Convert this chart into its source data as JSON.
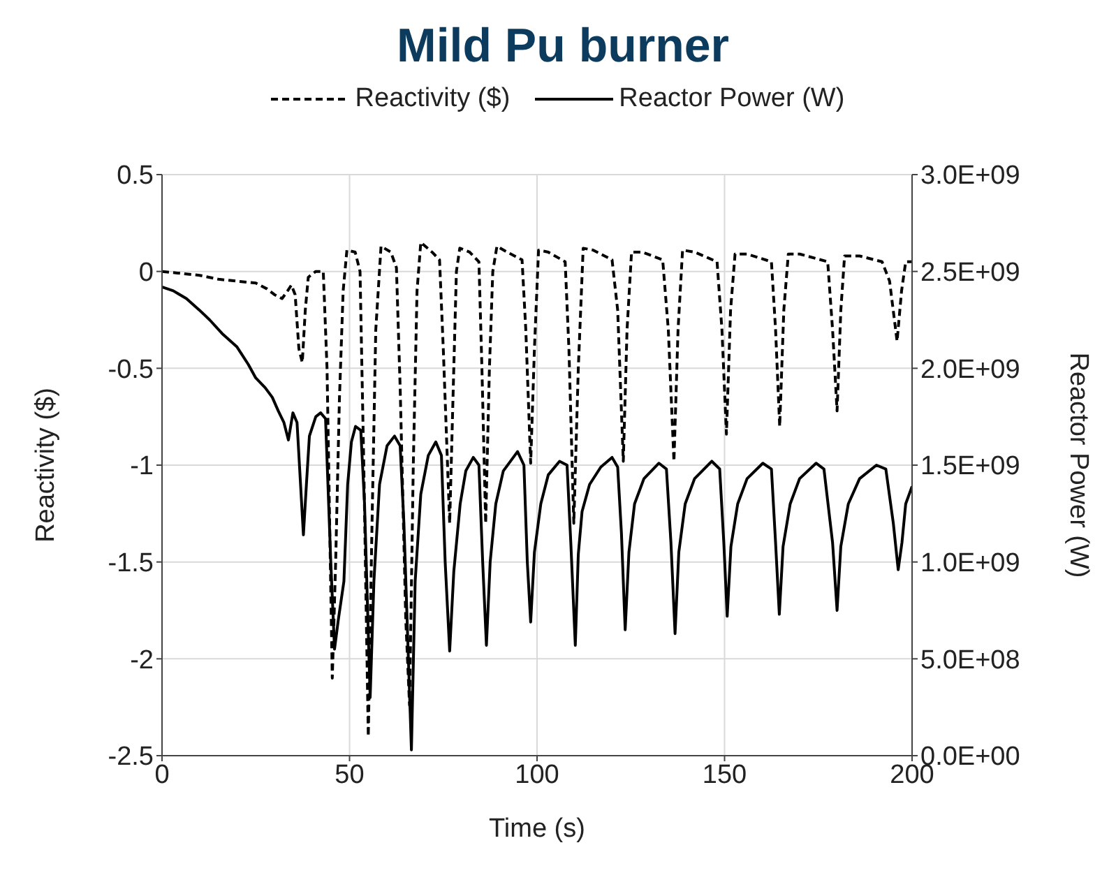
{
  "chart_data": {
    "type": "line",
    "title": "Mild Pu burner",
    "xlabel": "Time (s)",
    "ylabel": "Reactivity ($)",
    "y2label": "Reactor Power (W)",
    "xlim": [
      0,
      200
    ],
    "xticks": [
      0,
      50,
      100,
      150,
      200
    ],
    "ylim": [
      -2.5,
      0.5
    ],
    "yticks": [
      -2.5,
      -2,
      -1.5,
      -1,
      -0.5,
      0,
      0.5
    ],
    "y2lim": [
      0,
      3000000000.0
    ],
    "y2ticks": [
      {
        "value": 0,
        "label": "0.0E+00"
      },
      {
        "value": 500000000.0,
        "label": "5.0E+08"
      },
      {
        "value": 1000000000.0,
        "label": "1.0E+09"
      },
      {
        "value": 1500000000.0,
        "label": "1.5E+09"
      },
      {
        "value": 2000000000.0,
        "label": "2.0E+09"
      },
      {
        "value": 2500000000.0,
        "label": "2.5E+09"
      },
      {
        "value": 3000000000.0,
        "label": "3.0E+09"
      }
    ],
    "grid": true,
    "legend": "top",
    "marker": "none",
    "series": [
      {
        "name": "Reactivity ($)",
        "color": "#000000",
        "line_style": "dashed",
        "x": [
          0,
          5,
          10,
          15,
          20,
          25,
          28,
          30,
          32,
          33.5,
          34.5,
          35.5,
          36.5,
          37.4,
          38.2,
          39,
          41,
          43,
          44,
          45.4,
          46.3,
          47.3,
          48.3,
          49.3,
          51.5,
          52.8,
          53.8,
          55,
          56,
          57,
          58.4,
          61,
          62.5,
          63.5,
          65,
          66,
          67,
          68,
          69,
          72,
          74,
          75,
          76.7,
          77.8,
          78.5,
          79.4,
          82,
          84.5,
          85.3,
          86.3,
          87.3,
          88.2,
          89.3,
          92,
          96,
          97,
          98.3,
          99.3,
          100.4,
          103,
          107.5,
          108.5,
          109.8,
          111,
          112.3,
          115,
          120,
          121.5,
          123,
          124,
          125.2,
          128,
          133.5,
          135,
          136.5,
          137.6,
          138.8,
          142,
          148,
          149.3,
          150.5,
          151.6,
          152.8,
          156,
          162.5,
          163.6,
          164.7,
          165.8,
          167,
          170,
          177.5,
          178.8,
          180,
          181,
          182,
          186,
          192,
          194,
          196,
          197.2,
          198.3,
          200
        ],
        "values": [
          0,
          -0.01,
          -0.02,
          -0.04,
          -0.05,
          -0.06,
          -0.09,
          -0.12,
          -0.14,
          -0.1,
          -0.07,
          -0.12,
          -0.4,
          -0.47,
          -0.2,
          -0.03,
          0,
          0,
          -0.5,
          -2.1,
          -1.5,
          -0.66,
          -0.1,
          0.11,
          0.1,
          0,
          -1,
          -2.4,
          -1.3,
          -0.3,
          0.13,
          0.1,
          0.02,
          -0.6,
          -1.8,
          -2.24,
          -1,
          -0.1,
          0.15,
          0.1,
          0.06,
          -0.4,
          -1.3,
          -0.5,
          0,
          0.12,
          0.1,
          0.05,
          -0.5,
          -1.3,
          -0.5,
          0,
          0.13,
          0.1,
          0.06,
          -0.3,
          -0.99,
          -0.4,
          0.11,
          0.1,
          0.05,
          -0.4,
          -1.3,
          -0.5,
          0.12,
          0.11,
          0.06,
          -0.2,
          -0.98,
          -0.3,
          0.1,
          0.1,
          0.06,
          -0.3,
          -0.98,
          -0.3,
          0.11,
          0.1,
          0.05,
          -0.3,
          -0.84,
          -0.2,
          0.09,
          0.09,
          0.05,
          -0.3,
          -0.8,
          -0.2,
          0.09,
          0.09,
          0.05,
          -0.3,
          -0.72,
          -0.2,
          0.08,
          0.08,
          0.05,
          -0.05,
          -0.36,
          -0.1,
          0.05,
          0.05
        ]
      },
      {
        "name": "Reactor Power (W)",
        "color": "#000000",
        "line_style": "solid",
        "axis": "y2",
        "x": [
          0,
          3,
          6.5,
          10,
          12.7,
          16,
          20,
          23,
          25,
          27.5,
          29.4,
          31,
          32.5,
          33.7,
          34.9,
          36,
          37.7,
          38.5,
          39.3,
          41,
          42.3,
          43.6,
          45,
          46,
          47,
          48.5,
          49.5,
          50.5,
          51.6,
          53,
          54,
          55.5,
          56.5,
          58,
          60,
          62,
          63.5,
          64.5,
          66.5,
          67.5,
          69,
          71,
          73,
          74.5,
          75.5,
          76.7,
          77.8,
          79.5,
          81,
          83,
          84.5,
          85.5,
          86.5,
          87.5,
          89,
          91,
          94.8,
          96.5,
          97.4,
          98.3,
          99.3,
          101,
          103,
          106,
          108,
          109,
          110.2,
          111,
          112,
          114,
          117,
          120,
          121.5,
          122.5,
          123.5,
          124.5,
          126,
          128.5,
          132.5,
          134.5,
          135.7,
          136.8,
          137.8,
          139.5,
          142,
          146.6,
          148.7,
          149.8,
          150.7,
          151.7,
          153.5,
          156,
          160.2,
          162.5,
          163.6,
          164.6,
          165.6,
          167.5,
          170,
          174.4,
          176.5,
          178.8,
          180,
          181,
          183,
          186,
          190.5,
          193,
          195,
          196.3,
          197.3,
          198.3,
          200
        ],
        "values": [
          2420000000.0,
          2400000000.0,
          2360000000.0,
          2300000000.0,
          2250000000.0,
          2180000000.0,
          2110000000.0,
          2020000000.0,
          1950000000.0,
          1900000000.0,
          1850000000.0,
          1780000000.0,
          1720000000.0,
          1630000000.0,
          1770000000.0,
          1720000000.0,
          1140000000.0,
          1400000000.0,
          1650000000.0,
          1750000000.0,
          1770000000.0,
          1740000000.0,
          1000000000.0,
          550000000.0,
          700000000.0,
          900000000.0,
          1400000000.0,
          1620000000.0,
          1700000000.0,
          1680000000.0,
          1300000000.0,
          300000000.0,
          900000000.0,
          1400000000.0,
          1600000000.0,
          1650000000.0,
          1600000000.0,
          1200000000.0,
          30000000.0,
          900000000.0,
          1350000000.0,
          1550000000.0,
          1620000000.0,
          1550000000.0,
          1000000000.0,
          540000000.0,
          950000000.0,
          1300000000.0,
          1470000000.0,
          1540000000.0,
          1500000000.0,
          1000000000.0,
          570000000.0,
          1000000000.0,
          1300000000.0,
          1470000000.0,
          1570000000.0,
          1500000000.0,
          1000000000.0,
          690000000.0,
          1050000000.0,
          1300000000.0,
          1450000000.0,
          1520000000.0,
          1500000000.0,
          1100000000.0,
          570000000.0,
          1040000000.0,
          1260000000.0,
          1400000000.0,
          1490000000.0,
          1540000000.0,
          1490000000.0,
          1150000000.0,
          650000000.0,
          1050000000.0,
          1300000000.0,
          1430000000.0,
          1510000000.0,
          1480000000.0,
          1100000000.0,
          630000000.0,
          1050000000.0,
          1300000000.0,
          1430000000.0,
          1520000000.0,
          1480000000.0,
          1100000000.0,
          720000000.0,
          1080000000.0,
          1300000000.0,
          1430000000.0,
          1510000000.0,
          1480000000.0,
          1100000000.0,
          730000000.0,
          1080000000.0,
          1300000000.0,
          1430000000.0,
          1510000000.0,
          1480000000.0,
          1100000000.0,
          750000000.0,
          1080000000.0,
          1300000000.0,
          1430000000.0,
          1500000000.0,
          1480000000.0,
          1200000000.0,
          960000000.0,
          1100000000.0,
          1300000000.0,
          1390000000.0
        ]
      }
    ]
  }
}
